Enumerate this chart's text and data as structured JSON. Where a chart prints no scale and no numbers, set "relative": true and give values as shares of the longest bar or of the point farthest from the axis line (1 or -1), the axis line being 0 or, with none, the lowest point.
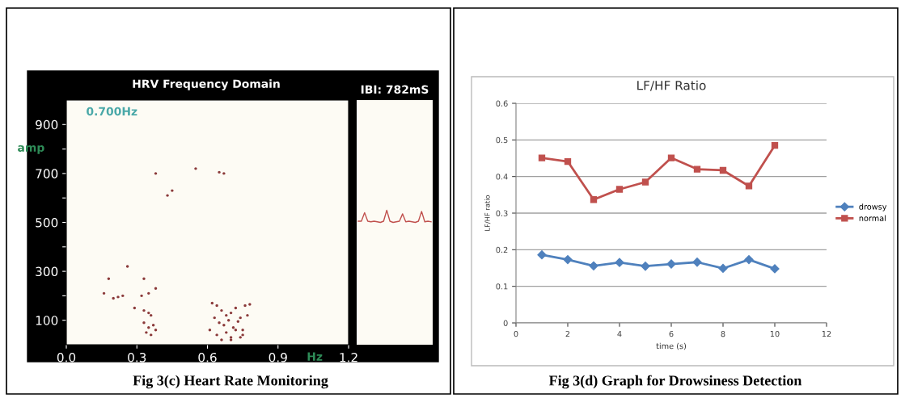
{
  "chart_data": [
    {
      "type": "scatter",
      "title": "HRV Frequency Domain",
      "xlabel": "Hz",
      "ylabel": "amp",
      "annotations": [
        "0.700Hz",
        "IBI: 782mS",
        "Fig 3(c) Heart Rate Monitoring"
      ],
      "xlim": [
        0,
        1.2
      ],
      "xticks": [
        {
          "value": 0,
          "label": "0.0"
        },
        {
          "value": 0.3,
          "label": "0.3"
        },
        {
          "value": 0.6,
          "label": "0.6"
        },
        {
          "value": 0.9,
          "label": "0.9"
        },
        {
          "value": 1.2,
          "label": "1.2"
        }
      ],
      "ylim": [
        0,
        1000
      ],
      "yticks": [
        100,
        {
          "value": 200,
          "label": null
        },
        300,
        {
          "value": 400,
          "label": null
        },
        500,
        {
          "value": 600,
          "label": null
        },
        700,
        {
          "value": 800,
          "label": null
        },
        900
      ],
      "marker": "circle",
      "grid": false,
      "series": [
        {
          "color": "#8b3a3a",
          "x": [
            0.38,
            0.55,
            0.65,
            0.67,
            0.45,
            0.43,
            0.26,
            0.18,
            0.33,
            0.16,
            0.2,
            0.22,
            0.24,
            0.32,
            0.35,
            0.38,
            0.29,
            0.33,
            0.35,
            0.36,
            0.33,
            0.35,
            0.37,
            0.34,
            0.36,
            0.38,
            0.62,
            0.64,
            0.66,
            0.68,
            0.7,
            0.72,
            0.74,
            0.76,
            0.78,
            0.63,
            0.65,
            0.67,
            0.69,
            0.71,
            0.73,
            0.75,
            0.77,
            0.61,
            0.64,
            0.68,
            0.7,
            0.72,
            0.75,
            0.66,
            0.7,
            0.74
          ],
          "values": [
            700,
            720,
            705,
            700,
            630,
            610,
            320,
            270,
            270,
            210,
            190,
            195,
            200,
            200,
            210,
            230,
            150,
            140,
            130,
            120,
            90,
            70,
            80,
            50,
            40,
            60,
            170,
            160,
            140,
            120,
            130,
            150,
            110,
            160,
            165,
            110,
            90,
            80,
            100,
            70,
            95,
            60,
            120,
            60,
            40,
            50,
            30,
            60,
            40,
            20,
            20,
            30
          ]
        }
      ]
    },
    {
      "type": "line",
      "relative": true,
      "categories": [
        null,
        null,
        null,
        null,
        null,
        null,
        null,
        null,
        null,
        null,
        null,
        null,
        null,
        null,
        null,
        null,
        null,
        null,
        null,
        null,
        null,
        null,
        null,
        null
      ],
      "series": [
        {
          "color": "#c0504d",
          "values": [
            0.1,
            0.1,
            0.8,
            0.1,
            0.05,
            0.1,
            0.05,
            0,
            0.1,
            1,
            0.1,
            0,
            0.05,
            0.1,
            0.7,
            0.05,
            0.1,
            0.05,
            0,
            0.1,
            0.9,
            0.05,
            0.1,
            0.05
          ]
        }
      ]
    },
    {
      "type": "line",
      "title": "LF/HF Ratio",
      "xlabel": "time (s)",
      "ylabel": "LF/HF ratio",
      "annotations": [
        "Fig 3(d) Graph for Drowsiness Detection"
      ],
      "x": [
        1,
        2,
        3,
        4,
        5,
        6,
        7,
        8,
        9,
        10
      ],
      "xlim": [
        0,
        12
      ],
      "xticks": [
        0,
        2,
        4,
        6,
        8,
        10,
        12
      ],
      "ylim": [
        0,
        0.6
      ],
      "yticks": [
        0,
        0.1,
        0.2,
        0.3,
        0.4,
        0.5,
        0.6
      ],
      "grid": "y",
      "legend": "right",
      "series": [
        {
          "name": "drowsy",
          "color": "#4f81bd",
          "marker": "diamond",
          "values": [
            0.186,
            0.173,
            0.156,
            0.165,
            0.155,
            0.161,
            0.166,
            0.149,
            0.173,
            0.148
          ]
        },
        {
          "name": "normal",
          "color": "#c0504d",
          "marker": "square",
          "values": [
            0.451,
            0.441,
            0.337,
            0.365,
            0.385,
            0.451,
            0.42,
            0.417,
            0.374,
            0.485
          ]
        }
      ]
    }
  ]
}
